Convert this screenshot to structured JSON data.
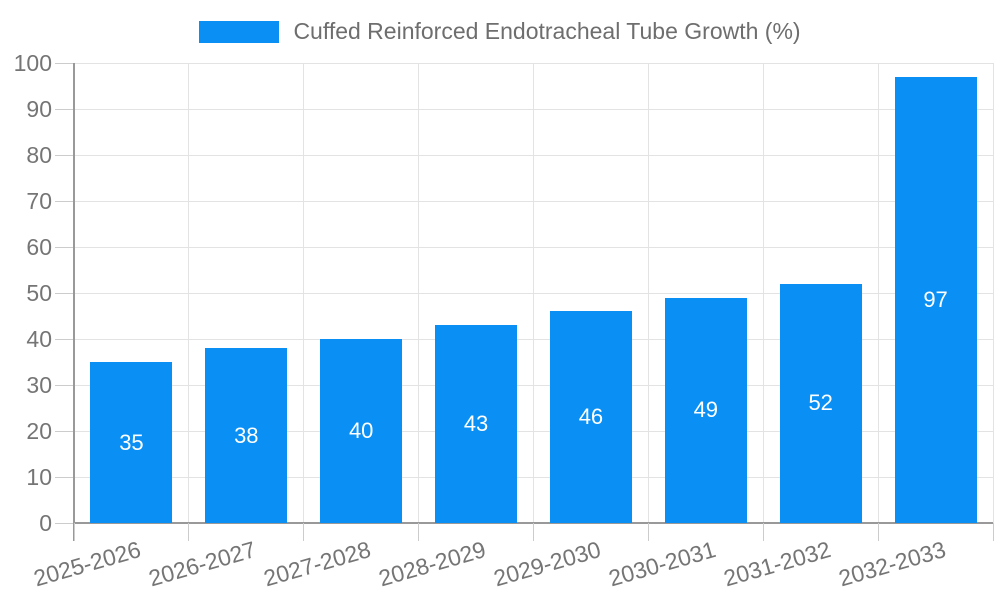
{
  "legend": {
    "label": "Cuffed Reinforced Endotracheal Tube Growth (%)"
  },
  "colors": {
    "bar": "#0a90f5",
    "legend_text": "#6e6e6e",
    "axis_text": "#757575",
    "value_label": "#ffffff",
    "grid": "#e3e3e3",
    "axis_line": "#999999",
    "tick": "#cccccc"
  },
  "chart_data": {
    "type": "bar",
    "title": "Cuffed Reinforced Endotracheal Tube Growth (%)",
    "categories": [
      "2025-2026",
      "2026-2027",
      "2027-2028",
      "2028-2029",
      "2029-2030",
      "2030-2031",
      "2031-2032",
      "2032-2033"
    ],
    "values": [
      35,
      38,
      40,
      43,
      46,
      49,
      52,
      97
    ],
    "xlabel": "",
    "ylabel": "",
    "ylim": [
      0,
      100
    ],
    "ytick_step": 10,
    "ytick_labels": [
      "0",
      "10",
      "20",
      "30",
      "40",
      "50",
      "60",
      "70",
      "80",
      "90",
      "100"
    ],
    "grid": true,
    "legend_position": "top-center",
    "value_label_position": "inside-middle",
    "x_label_rotation_deg": -16
  }
}
